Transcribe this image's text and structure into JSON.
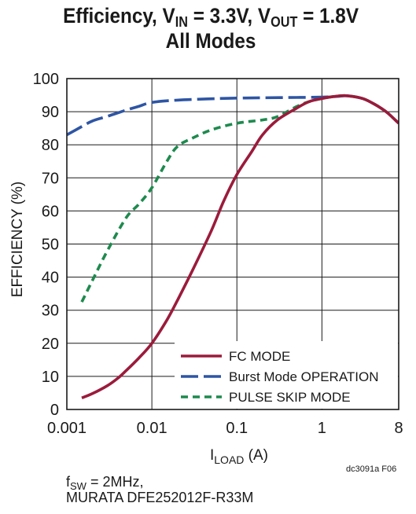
{
  "chart_data": {
    "type": "line",
    "title_line1_prefix": "Efficiency, V",
    "title_vin_sub": "IN",
    "title_vin_value": " = 3.3V, V",
    "title_vout_sub": "OUT",
    "title_vout_value": " = 1.8V",
    "title_line2": "All Modes",
    "xlabel_main": "I",
    "xlabel_sub": "LOAD",
    "xlabel_unit": " (A)",
    "ylabel": "EFFICIENCY (%)",
    "x_scale": "log",
    "xlim": [
      0.001,
      8
    ],
    "ylim": [
      0,
      100
    ],
    "x_ticks": [
      0.001,
      0.01,
      0.1,
      1,
      8
    ],
    "x_tick_labels": [
      "0.001",
      "0.01",
      "0.1",
      "1",
      "8"
    ],
    "y_ticks": [
      0,
      10,
      20,
      30,
      40,
      50,
      60,
      70,
      80,
      90,
      100
    ],
    "y_tick_labels": [
      "0",
      "10",
      "20",
      "30",
      "40",
      "50",
      "60",
      "70",
      "80",
      "90",
      "100"
    ],
    "grid": true,
    "legend_position": "bottom-right",
    "series": [
      {
        "name": "FC MODE",
        "color": "#9b1b3b",
        "dash": "solid",
        "points": [
          [
            0.0015,
            3.5
          ],
          [
            0.002,
            4.8
          ],
          [
            0.003,
            7.2
          ],
          [
            0.004,
            9.5
          ],
          [
            0.005,
            11.8
          ],
          [
            0.007,
            15.5
          ],
          [
            0.01,
            20
          ],
          [
            0.015,
            27
          ],
          [
            0.02,
            33
          ],
          [
            0.03,
            42
          ],
          [
            0.05,
            54
          ],
          [
            0.07,
            63
          ],
          [
            0.1,
            71
          ],
          [
            0.15,
            78
          ],
          [
            0.2,
            83
          ],
          [
            0.3,
            87.5
          ],
          [
            0.5,
            91
          ],
          [
            0.7,
            93
          ],
          [
            1,
            94
          ],
          [
            1.5,
            94.7
          ],
          [
            2,
            94.8
          ],
          [
            3,
            94
          ],
          [
            4,
            92.5
          ],
          [
            5,
            91
          ],
          [
            6,
            89.5
          ],
          [
            8,
            86.5
          ]
        ]
      },
      {
        "name": "Burst Mode OPERATION",
        "color": "#2e55a4",
        "dash": "long",
        "points": [
          [
            0.001,
            83
          ],
          [
            0.0015,
            85.5
          ],
          [
            0.002,
            87.2
          ],
          [
            0.003,
            88.6
          ],
          [
            0.005,
            90.5
          ],
          [
            0.007,
            91.6
          ],
          [
            0.01,
            92.8
          ],
          [
            0.02,
            93.5
          ],
          [
            0.05,
            93.9
          ],
          [
            0.1,
            94.1
          ],
          [
            0.2,
            94.2
          ],
          [
            0.5,
            94.3
          ],
          [
            1,
            94.4
          ],
          [
            1.5,
            94.6
          ],
          [
            2,
            94.8
          ],
          [
            3,
            94
          ],
          [
            4,
            92.5
          ],
          [
            5,
            91
          ],
          [
            6,
            89.5
          ],
          [
            8,
            86.5
          ]
        ]
      },
      {
        "name": "PULSE SKIP MODE",
        "color": "#1e8a4e",
        "dash": "short",
        "points": [
          [
            0.0015,
            32.5
          ],
          [
            0.002,
            39
          ],
          [
            0.003,
            48
          ],
          [
            0.005,
            58
          ],
          [
            0.007,
            62
          ],
          [
            0.01,
            67
          ],
          [
            0.015,
            75
          ],
          [
            0.02,
            79.5
          ],
          [
            0.03,
            82
          ],
          [
            0.05,
            84.5
          ],
          [
            0.1,
            86.5
          ],
          [
            0.2,
            87.5
          ],
          [
            0.3,
            88.5
          ],
          [
            0.5,
            91.5
          ],
          [
            0.7,
            93
          ],
          [
            1,
            94
          ],
          [
            1.5,
            94.7
          ],
          [
            2,
            94.8
          ],
          [
            3,
            94
          ],
          [
            4,
            92.5
          ],
          [
            5,
            91
          ],
          [
            6,
            89.5
          ],
          [
            8,
            86.5
          ]
        ]
      }
    ]
  },
  "figure_id": "dc3091a F06",
  "footnote": {
    "fsw_prefix": "f",
    "fsw_sub": "SW",
    "fsw_value": " = 2MHz,",
    "inductor": "MURATA DFE252012F-R33M"
  }
}
